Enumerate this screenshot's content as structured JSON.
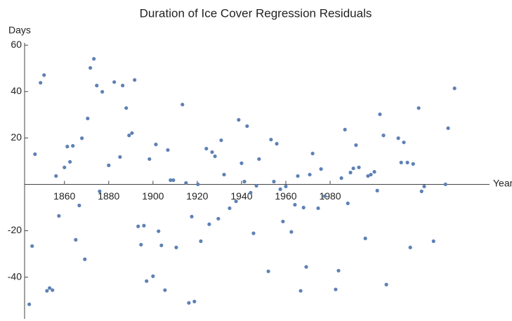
{
  "chart_data": {
    "type": "scatter",
    "title": "Duration of Ice Cover Regression Residuals",
    "x_label": "Year",
    "y_label": "Days",
    "color": "#5e81b5",
    "xlim": [
      1842,
      2052
    ],
    "ylim": [
      -58,
      61
    ],
    "xticks": [
      1860,
      1880,
      1900,
      1920,
      1940,
      1960,
      1980
    ],
    "yticks": [
      -40,
      -20,
      20,
      40,
      60
    ],
    "x": [
      1844.1,
      1845.4,
      1846.7,
      1849.2,
      1850.8,
      1852.1,
      1853.3,
      1854.6,
      1856.2,
      1857.5,
      1860.0,
      1861.3,
      1862.5,
      1863.8,
      1865.1,
      1866.7,
      1867.9,
      1869.2,
      1870.5,
      1871.7,
      1873.3,
      1874.6,
      1875.9,
      1877.1,
      1880.0,
      1882.5,
      1885.1,
      1886.3,
      1887.9,
      1889.2,
      1890.5,
      1891.7,
      1893.3,
      1894.6,
      1895.9,
      1897.1,
      1898.4,
      1900.0,
      1901.3,
      1902.5,
      1903.8,
      1905.4,
      1906.7,
      1907.9,
      1909.2,
      1910.5,
      1913.3,
      1914.9,
      1916.2,
      1917.5,
      1918.7,
      1920.3,
      1921.6,
      1924.1,
      1925.4,
      1926.7,
      1928.0,
      1929.5,
      1930.8,
      1932.1,
      1934.6,
      1937.5,
      1938.7,
      1940.0,
      1941.3,
      1942.5,
      1944.1,
      1945.4,
      1946.7,
      1947.9,
      1952.1,
      1953.3,
      1954.6,
      1955.9,
      1957.5,
      1958.7,
      1960.0,
      1962.5,
      1964.1,
      1965.4,
      1966.7,
      1968.0,
      1969.2,
      1970.8,
      1972.1,
      1974.6,
      1975.9,
      1977.5,
      1982.5,
      1983.8,
      1985.1,
      1986.7,
      1988.0,
      1989.2,
      1990.5,
      1991.7,
      1993.0,
      1995.9,
      1997.1,
      1998.4,
      2000.0,
      2001.3,
      2002.5,
      2004.1,
      2005.4,
      2010.8,
      2012.1,
      2013.3,
      2014.9,
      2016.2,
      2017.5,
      2020.0,
      2021.3,
      2022.5,
      2026.7,
      2032.1,
      2033.3,
      2036.2
    ],
    "values": [
      -51.7,
      -26.6,
      13.0,
      43.8,
      47.1,
      -45.9,
      -44.7,
      -45.6,
      3.6,
      -13.6,
      7.3,
      16.3,
      9.7,
      16.6,
      -23.9,
      -9.1,
      19.9,
      -32.3,
      28.4,
      50.2,
      54.1,
      42.6,
      -3.0,
      39.9,
      8.2,
      44.1,
      11.8,
      42.6,
      32.9,
      21.1,
      22.1,
      45.0,
      -18.1,
      -26.0,
      -17.8,
      -41.7,
      10.9,
      -39.6,
      17.2,
      -20.2,
      -26.3,
      -45.6,
      14.8,
      1.8,
      1.8,
      -27.2,
      34.4,
      0.6,
      -51.1,
      -13.9,
      -50.5,
      0.0,
      -24.5,
      15.4,
      -17.2,
      13.9,
      12.1,
      -14.8,
      19.0,
      4.2,
      -10.3,
      -7.3,
      27.8,
      9.1,
      1.2,
      25.1,
      -3.6,
      -21.1,
      -0.6,
      10.9,
      -37.5,
      19.3,
      1.2,
      17.5,
      -2.1,
      -16.0,
      -0.9,
      -20.5,
      -8.8,
      3.6,
      -45.9,
      -10.0,
      -35.6,
      4.2,
      13.3,
      -10.3,
      6.6,
      -5.1,
      -45.3,
      -37.2,
      2.7,
      23.6,
      -8.2,
      5.1,
      6.9,
      16.9,
      7.3,
      -23.3,
      3.6,
      4.2,
      5.4,
      -2.7,
      30.2,
      21.1,
      -43.2,
      19.9,
      9.4,
      18.1,
      9.4,
      -27.2,
      8.8,
      32.9,
      -3.0,
      -0.9,
      -24.5,
      0.0,
      24.2,
      41.4
    ]
  }
}
